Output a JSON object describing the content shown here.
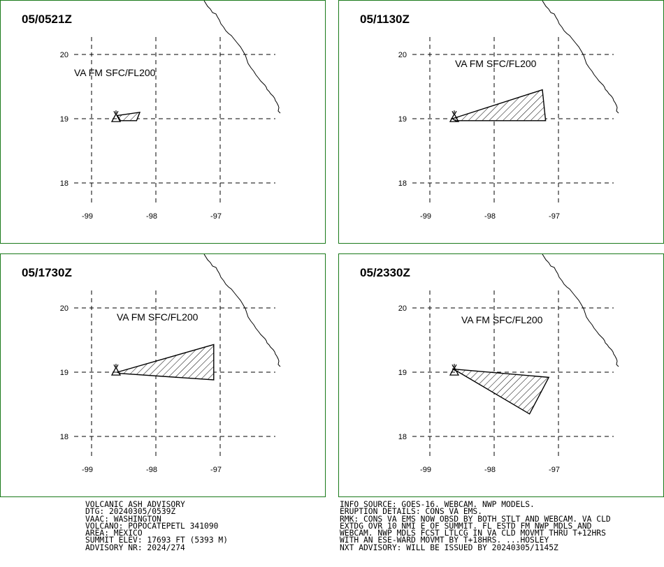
{
  "panels": [
    {
      "time_label": "05/0521Z",
      "va_label": "VA FM SFC/FL200",
      "cloud_polygon": [
        [
          -98.6,
          19.05
        ],
        [
          -98.25,
          19.1
        ],
        [
          -98.3,
          18.97
        ],
        [
          -98.55,
          18.97
        ]
      ]
    },
    {
      "time_label": "05/1130Z",
      "va_label": "VA FM SFC/FL200",
      "cloud_polygon": [
        [
          -98.65,
          19.0
        ],
        [
          -97.25,
          19.45
        ],
        [
          -97.2,
          18.97
        ],
        [
          -98.6,
          18.97
        ]
      ]
    },
    {
      "time_label": "05/1730Z",
      "va_label": "VA FM SFC/FL200",
      "cloud_polygon": [
        [
          -98.6,
          19.0
        ],
        [
          -97.1,
          19.43
        ],
        [
          -97.1,
          18.88
        ],
        [
          -98.55,
          18.98
        ]
      ]
    },
    {
      "time_label": "05/2330Z",
      "va_label": "VA FM SFC/FL200",
      "cloud_polygon": [
        [
          -98.65,
          19.05
        ],
        [
          -97.15,
          18.92
        ],
        [
          -97.45,
          18.35
        ],
        [
          -98.55,
          19.0
        ]
      ]
    }
  ],
  "map": {
    "lat_ticks": [
      "20",
      "19",
      "18"
    ],
    "lon_ticks": [
      "-99",
      "-98",
      "-97"
    ],
    "lat_values": [
      20,
      19,
      18
    ],
    "lon_values": [
      -99,
      -98,
      -97
    ],
    "volcano_location": [
      -98.62,
      19.02
    ],
    "colors": {
      "border": "#1a7a1a",
      "grid": "#000000",
      "cloud_fill": "#ffffff",
      "hatch": "#000000"
    }
  },
  "advisory_left": [
    "VOLCANIC ASH ADVISORY",
    "DTG: 20240305/0539Z",
    "VAAC: WASHINGTON",
    "VOLCANO: POPOCATEPETL 341090",
    "AREA: MEXICO",
    "SUMMIT ELEV: 17693 FT (5393 M)",
    "ADVISORY NR: 2024/274"
  ],
  "advisory_right": [
    "INFO SOURCE: GOES-16. WEBCAM. NWP MODELS.",
    "ERUPTION DETAILS: CONS VA EMS.",
    "RMK: CONS VA EMS NOW OBSD BY BOTH STLT AND WEBCAM. VA CLD",
    "EXTDG OVR 10 NMI E OF SUMMIT. FL ESTD FM NWP MDLS AND",
    "WEBCAM. NWP MDLS FCST LTLCG IN VA CLD MOVMT THRU T+12HRS",
    "WITH AN ESE-WARD MOVMT BY T+18HRS. ...HOSLEY",
    "NXT ADVISORY: WILL BE ISSUED BY 20240305/1145Z"
  ]
}
